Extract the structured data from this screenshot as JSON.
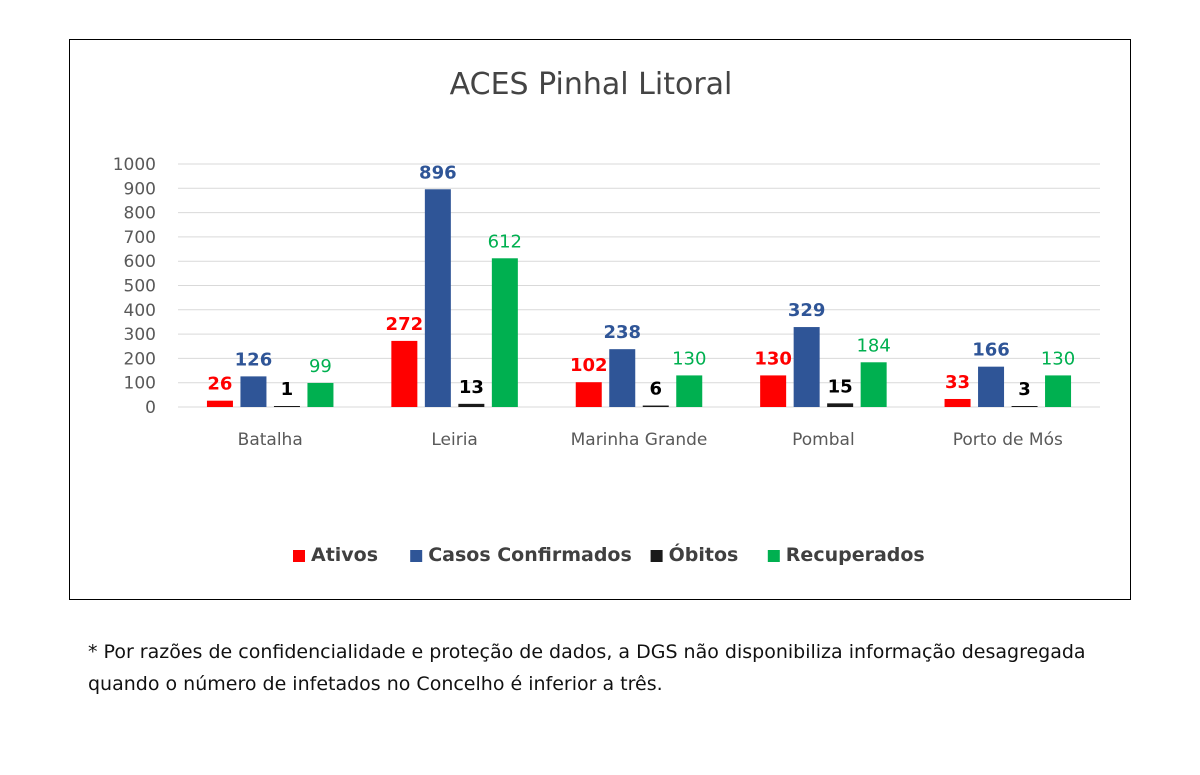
{
  "chart_data": {
    "type": "bar",
    "title": "ACES Pinhal Litoral",
    "xlabel": "",
    "ylabel": "",
    "ylim": [
      0,
      1000
    ],
    "yticks": [
      0,
      100,
      200,
      300,
      400,
      500,
      600,
      700,
      800,
      900,
      1000
    ],
    "grid": true,
    "legend_position": "bottom",
    "categories": [
      "Batalha",
      "Leiria",
      "Marinha Grande",
      "Pombal",
      "Porto de Mós"
    ],
    "series": [
      {
        "name": "Ativos",
        "color": "#ff0000",
        "label_color": "#ff0000",
        "values": [
          26,
          272,
          102,
          130,
          33
        ]
      },
      {
        "name": "Casos Confirmados",
        "color": "#2f5597",
        "label_color": "#2f5597",
        "values": [
          126,
          896,
          238,
          329,
          166
        ]
      },
      {
        "name": "Óbitos",
        "color": "#1a1a1a",
        "label_color": "#000000",
        "values": [
          1,
          13,
          6,
          15,
          3
        ]
      },
      {
        "name": "Recuperados",
        "color": "#00b050",
        "label_color": "#00b050",
        "values": [
          99,
          612,
          130,
          184,
          130
        ]
      }
    ]
  },
  "footnote": "* Por razões de confidencialidade e proteção de dados, a DGS não disponibiliza informação desagregada quando o número de infetados no Concelho é inferior a três."
}
